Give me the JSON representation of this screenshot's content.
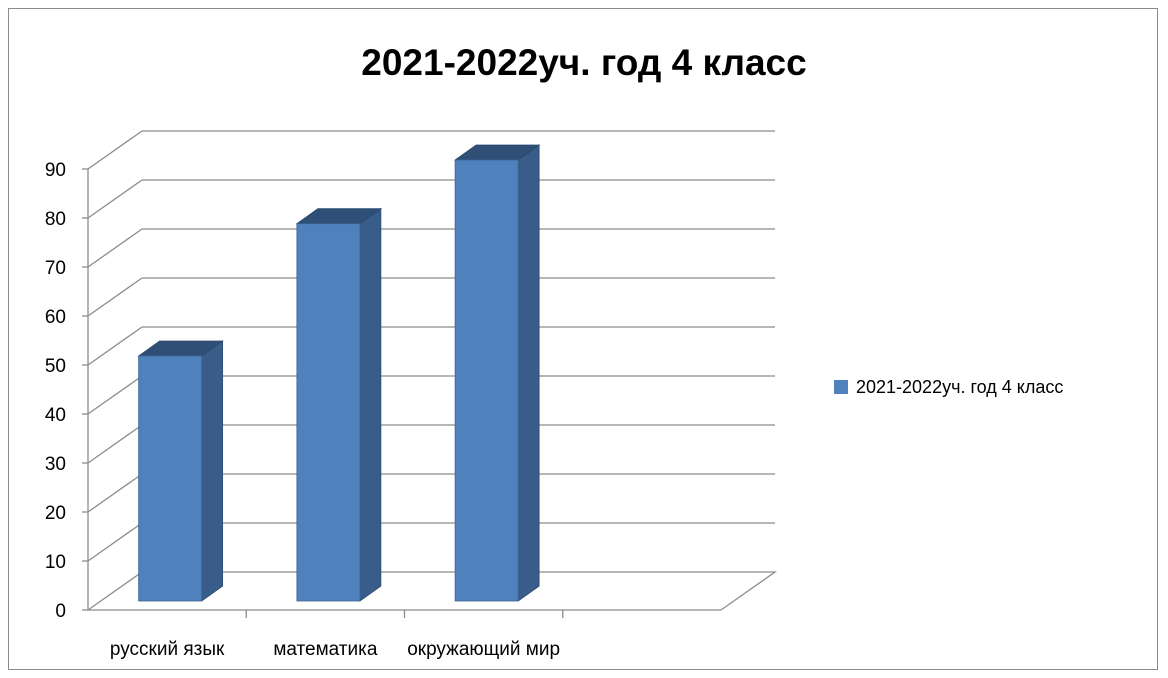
{
  "chart_data": {
    "type": "bar",
    "title": "2021-2022уч. год 4 класс",
    "categories": [
      "русский язык",
      "математика",
      "окружающий мир"
    ],
    "series": [
      {
        "name": "2021-2022уч. год 4 класс",
        "values": [
          50,
          77,
          90
        ]
      }
    ],
    "ylim": [
      0,
      90
    ],
    "yticks": [
      0,
      10,
      20,
      30,
      40,
      50,
      60,
      70,
      80,
      90
    ],
    "grid": true,
    "legend": "right",
    "style": "3d-column",
    "colors": {
      "bar_front": "#4f81bd",
      "bar_side": "#385d8a",
      "bar_top": "#2f4f77",
      "gridline": "#8c8c8c",
      "axis": "#8c8c8c"
    }
  }
}
